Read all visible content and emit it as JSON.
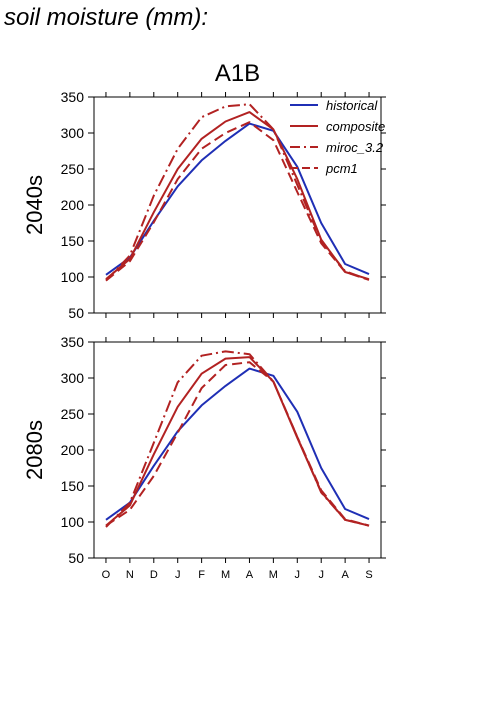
{
  "heading": "soil moisture (mm):",
  "chart_data": [
    {
      "type": "line",
      "title": "A1B",
      "ylabel": "2040s",
      "xlabel": "",
      "categories": [
        "O",
        "N",
        "D",
        "J",
        "F",
        "M",
        "A",
        "M",
        "J",
        "J",
        "A",
        "S"
      ],
      "ylim": [
        50,
        350
      ],
      "yticks": [
        50,
        100,
        150,
        200,
        250,
        300,
        350
      ],
      "grid": false,
      "legend_position": "top-right",
      "series": [
        {
          "name": "historical",
          "color": "#1f2fb5",
          "style": "solid",
          "values": [
            103,
            127,
            178,
            226,
            262,
            289,
            313,
            303,
            253,
            175,
            118,
            104
          ]
        },
        {
          "name": "composite",
          "color": "#b22222",
          "style": "solid",
          "values": [
            97,
            125,
            190,
            250,
            292,
            316,
            329,
            305,
            236,
            152,
            107,
            97
          ]
        },
        {
          "name": "miroc_3.2",
          "color": "#b22222",
          "style": "dashdot",
          "values": [
            95,
            130,
            213,
            278,
            322,
            337,
            340,
            305,
            228,
            150,
            108,
            96
          ]
        },
        {
          "name": "pcm1",
          "color": "#b22222",
          "style": "dashed",
          "values": [
            95,
            122,
            176,
            236,
            278,
            300,
            315,
            290,
            218,
            147,
            107,
            96
          ]
        }
      ]
    },
    {
      "type": "line",
      "title": "",
      "ylabel": "2080s",
      "xlabel": "",
      "categories": [
        "O",
        "N",
        "D",
        "J",
        "F",
        "M",
        "A",
        "M",
        "J",
        "J",
        "A",
        "S"
      ],
      "ylim": [
        50,
        350
      ],
      "yticks": [
        50,
        100,
        150,
        200,
        250,
        300,
        350
      ],
      "grid": false,
      "series": [
        {
          "name": "historical",
          "color": "#1f2fb5",
          "style": "solid",
          "values": [
            103,
            127,
            178,
            226,
            262,
            289,
            313,
            303,
            253,
            175,
            118,
            104
          ]
        },
        {
          "name": "composite",
          "color": "#b22222",
          "style": "solid",
          "values": [
            95,
            123,
            194,
            260,
            306,
            327,
            329,
            295,
            217,
            142,
            103,
            95
          ]
        },
        {
          "name": "miroc_3.2",
          "color": "#b22222",
          "style": "dashdot",
          "values": [
            93,
            127,
            210,
            294,
            331,
            337,
            333,
            295,
            218,
            141,
            103,
            95
          ]
        },
        {
          "name": "pcm1",
          "color": "#b22222",
          "style": "dashed",
          "values": [
            95,
            117,
            164,
            224,
            286,
            318,
            322,
            295,
            218,
            144,
            104,
            95
          ]
        }
      ]
    }
  ]
}
